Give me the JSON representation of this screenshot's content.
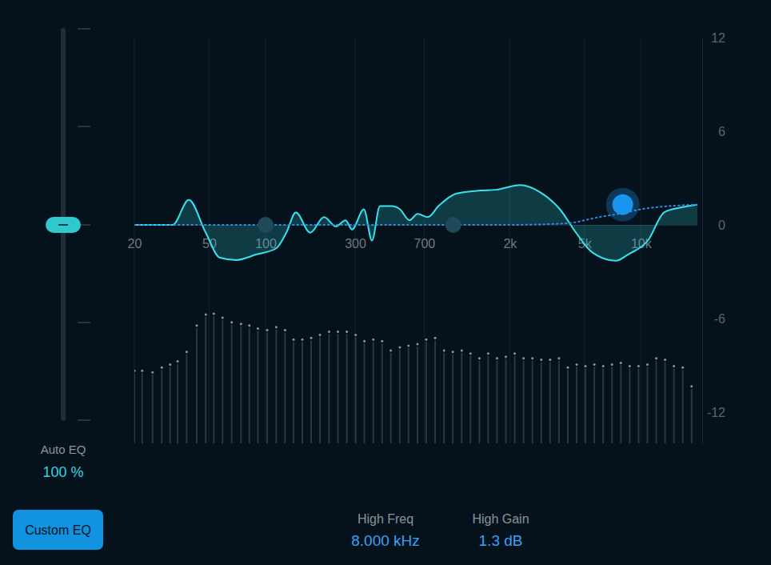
{
  "chart_data": {
    "type": "line",
    "log": "x",
    "grid": true,
    "xlim": [
      20,
      20000
    ],
    "xticks": [
      20,
      50,
      100,
      300,
      700,
      {
        "value": 2000,
        "label": "2k"
      },
      {
        "value": 5000,
        "label": "5k"
      },
      {
        "value": 10000,
        "label": "10k"
      }
    ],
    "ylim": [
      -14,
      12
    ],
    "yticks": [
      12,
      6,
      0,
      -6,
      -12
    ],
    "series": [
      {
        "type": "area",
        "color": "#35e3ee",
        "x": [
          20,
          32,
          39,
          48,
          57,
          70,
          89,
          114,
          129,
          145,
          173,
          205,
          237,
          267,
          289,
          334,
          369,
          407,
          471,
          520,
          585,
          646,
          733,
          834,
          1035,
          1388,
          1690,
          2270,
          2900,
          3700,
          4510,
          5490,
          7360,
          8530,
          10900,
          13300,
          16100,
          20000
        ],
        "values": [
          0,
          0,
          1.6,
          -0.5,
          -2.1,
          -2.25,
          -1.9,
          -1.5,
          -0.5,
          0.8,
          -0.5,
          0.5,
          -0.1,
          0.3,
          -0.3,
          1.0,
          -1.0,
          1.2,
          1.2,
          1.0,
          0.3,
          0.7,
          0.5,
          1.2,
          2.0,
          2.2,
          2.25,
          2.55,
          2.1,
          1.0,
          -0.5,
          -1.75,
          -2.3,
          -1.9,
          -1.0,
          0.8,
          1.1,
          1.3
        ]
      },
      {
        "type": "line",
        "line_style": "dotted",
        "color": "#2f8ae0",
        "x": [
          20,
          2000,
          4000,
          6000,
          8000,
          10000,
          14000,
          20000
        ],
        "values": [
          0,
          0,
          0.1,
          0.5,
          0.75,
          1.0,
          1.2,
          1.3
        ]
      },
      {
        "type": "bar",
        "marker": "dot",
        "color": "#8b96a0",
        "x": [
          20,
          22,
          25,
          28,
          31,
          34,
          38,
          43,
          48,
          53,
          59,
          66,
          74,
          82,
          91,
          102,
          114,
          127,
          141,
          157,
          175,
          195,
          218,
          243,
          271,
          302,
          336,
          375,
          418,
          465,
          519,
          578,
          645,
          718,
          801,
          893,
          995,
          1109,
          1236,
          1378,
          1535,
          1711,
          1908,
          2126,
          2370,
          2642,
          2944,
          3282,
          3658,
          4077,
          4544,
          5065,
          5646,
          6293,
          7014,
          7818,
          8714,
          9713,
          10826,
          12067,
          13450,
          14992,
          16710,
          18625
        ],
        "values": [
          -9.5,
          -9.5,
          -9.6,
          -9.3,
          -9.1,
          -8.9,
          -8.3,
          -6.6,
          -5.9,
          -5.85,
          -6.1,
          -6.4,
          -6.5,
          -6.6,
          -6.8,
          -6.9,
          -6.7,
          -6.9,
          -7.5,
          -7.5,
          -7.4,
          -7.2,
          -7.0,
          -7.0,
          -7.0,
          -7.2,
          -7.6,
          -7.5,
          -7.6,
          -8.2,
          -8.0,
          -7.9,
          -7.8,
          -7.5,
          -7.4,
          -8.2,
          -8.3,
          -8.2,
          -8.4,
          -8.7,
          -8.4,
          -8.7,
          -8.6,
          -8.4,
          -8.7,
          -8.7,
          -8.8,
          -8.8,
          -8.7,
          -9.3,
          -9.1,
          -9.2,
          -9.1,
          -9.2,
          -9.1,
          -9.0,
          -9.2,
          -9.2,
          -9.1,
          -8.7,
          -8.8,
          -9.2,
          -9.3,
          -10.5
        ]
      },
      {
        "type": "scatter",
        "marker": "circle",
        "colors": [
          "#1e4a5a",
          "#1e4a5a",
          "#1a95ef"
        ],
        "x": [
          100,
          1000,
          8000
        ],
        "values": [
          0,
          0,
          1.3
        ]
      }
    ]
  },
  "controls": {
    "auto_eq": {
      "label": "Auto EQ",
      "value": "100 %"
    },
    "button": "Custom EQ",
    "params": [
      {
        "label": "High Freq",
        "value": "8.000 kHz"
      },
      {
        "label": "High Gain",
        "value": "1.3 dB"
      }
    ]
  }
}
